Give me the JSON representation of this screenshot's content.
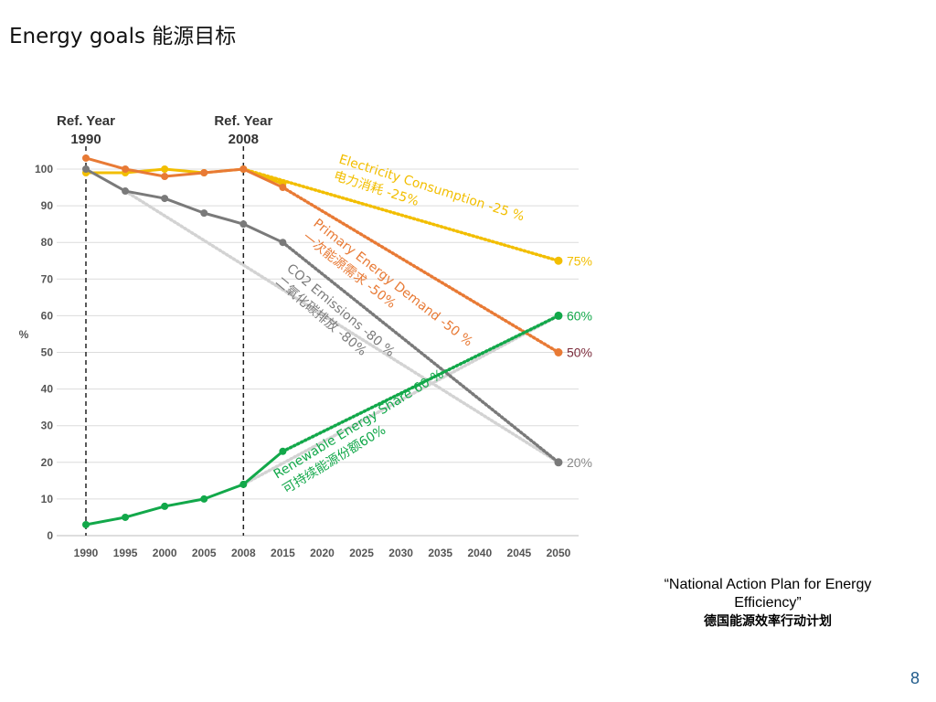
{
  "page": {
    "title": "Energy goals 能源目标",
    "caption_en": "“National Action Plan for Energy Efficiency”",
    "caption_cn": "德国能源效率行动计划",
    "page_number": "8"
  },
  "chart_data": {
    "type": "line",
    "ylabel": "%",
    "ylim": [
      0,
      100
    ],
    "yticks": [
      "0",
      "10",
      "20",
      "30",
      "40",
      "50",
      "60",
      "70",
      "80",
      "90",
      "100"
    ],
    "categories": [
      "1990",
      "1995",
      "2000",
      "2005",
      "2008",
      "2015",
      "2020",
      "2025",
      "2030",
      "2035",
      "2040",
      "2045",
      "2050"
    ],
    "reference_lines": [
      {
        "label_line1": "Ref. Year",
        "label_line2": "1990",
        "category": "1990"
      },
      {
        "label_line1": "Ref. Year",
        "label_line2": "2008",
        "category": "2008"
      }
    ],
    "series": [
      {
        "name": "Electricity Consumption",
        "color": "#f2be00",
        "actual": [
          [
            "1990",
            99
          ],
          [
            "1995",
            99
          ],
          [
            "2000",
            100
          ],
          [
            "2005",
            99
          ],
          [
            "2008",
            100
          ],
          [
            "2015",
            96
          ]
        ],
        "projection": [
          [
            "2008",
            100
          ],
          [
            "2050",
            75
          ]
        ],
        "end_label": "75%",
        "end_label_color": "#f2be00",
        "annotation_line1": "Electricity Consumption -25 %",
        "annotation_line2": "电力消耗 -25%"
      },
      {
        "name": "Primary Energy Demand",
        "color": "#e87a35",
        "actual": [
          [
            "1990",
            103
          ],
          [
            "1995",
            100
          ],
          [
            "2000",
            98
          ],
          [
            "2005",
            99
          ],
          [
            "2008",
            100
          ],
          [
            "2015",
            95
          ]
        ],
        "projection": [
          [
            "2015",
            95
          ],
          [
            "2050",
            50
          ]
        ],
        "end_label": "50%",
        "end_label_color": "#7a2a3a",
        "annotation_line1": "Primary Energy Demand -50 %",
        "annotation_line2": "一次能源需求 -50%"
      },
      {
        "name": "CO2 Emissions",
        "color": "#7a7a7a",
        "actual": [
          [
            "1990",
            100
          ],
          [
            "1995",
            94
          ],
          [
            "2000",
            92
          ],
          [
            "2005",
            88
          ],
          [
            "2008",
            85
          ],
          [
            "2015",
            80
          ]
        ],
        "projection": [
          [
            "2015",
            80
          ],
          [
            "2050",
            20
          ]
        ],
        "guide": [
          [
            "1995",
            94
          ],
          [
            "2050",
            20
          ]
        ],
        "end_label": "20%",
        "end_label_color": "#888888",
        "annotation_line1": "CO2 Emissions -80 %",
        "annotation_line2": "二氧化碳排放 -80%"
      },
      {
        "name": "Renewable Energy Share",
        "color": "#12a84a",
        "actual": [
          [
            "1990",
            3
          ],
          [
            "1995",
            5
          ],
          [
            "2000",
            8
          ],
          [
            "2005",
            10
          ],
          [
            "2008",
            14
          ],
          [
            "2015",
            23
          ]
        ],
        "projection": [
          [
            "2015",
            23
          ],
          [
            "2050",
            60
          ]
        ],
        "guide": [
          [
            "2008",
            14
          ],
          [
            "2050",
            60
          ]
        ],
        "end_label": "60%",
        "end_label_color": "#12a84a",
        "annotation_line1": "Renewable Energy Share 60 %",
        "annotation_line2": "可持续能源份额60%"
      }
    ]
  }
}
